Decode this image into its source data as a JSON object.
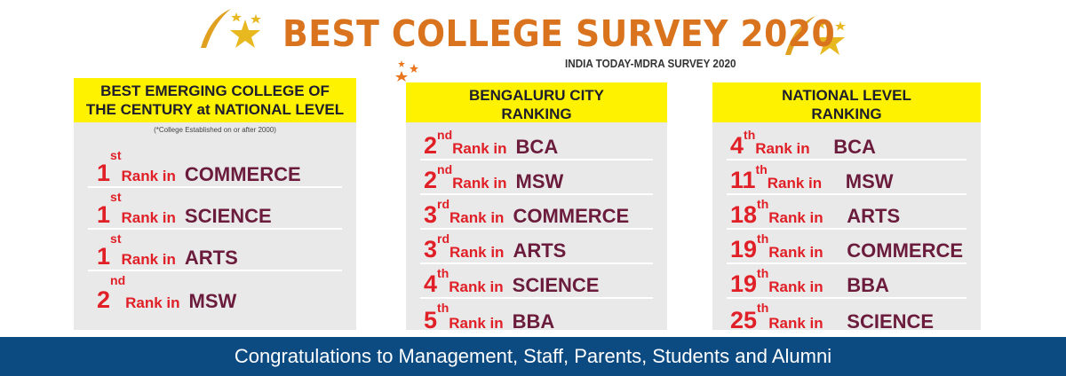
{
  "header": {
    "title": "BEST COLLEGE SURVEY 2020",
    "subtitle": "INDIA TODAY-MDRA SURVEY 2020",
    "icons": [
      "swoosh-star-icon",
      "orange-stars-icon"
    ]
  },
  "colors": {
    "title": "#d9731e",
    "header_bg": "#fff200",
    "rank_red": "#e01f27",
    "subject_maroon": "#6b1c3c",
    "footer_bg": "#0c4a82",
    "panel_bg": "#e9e9e9"
  },
  "panels": [
    {
      "heading": [
        "BEST EMERGING COLLEGE OF",
        "THE CENTURY at NATIONAL LEVEL"
      ],
      "note": "(*College Established on or after 2000)",
      "rows": [
        {
          "num": "1",
          "suffix": "st",
          "rank": "Rank in",
          "subject": "COMMERCE"
        },
        {
          "num": "1",
          "suffix": "st",
          "rank": "Rank in",
          "subject": "SCIENCE"
        },
        {
          "num": "1",
          "suffix": "st",
          "rank": "Rank in",
          "subject": "ARTS"
        },
        {
          "num": "2",
          "suffix": "nd",
          "rank": "Rank in",
          "subject": "MSW"
        }
      ]
    },
    {
      "heading": [
        "BENGALURU CITY",
        "RANKING"
      ],
      "rows": [
        {
          "num": "2",
          "suffix": "nd",
          "rank": "Rank in",
          "subject": "BCA"
        },
        {
          "num": "2",
          "suffix": "nd",
          "rank": "Rank in",
          "subject": "MSW"
        },
        {
          "num": "3",
          "suffix": "rd",
          "rank": "Rank in",
          "subject": "COMMERCE"
        },
        {
          "num": "3",
          "suffix": "rd",
          "rank": "Rank in",
          "subject": "ARTS"
        },
        {
          "num": "4",
          "suffix": "th",
          "rank": "Rank in",
          "subject": "SCIENCE"
        },
        {
          "num": "5",
          "suffix": "th",
          "rank": "Rank in",
          "subject": "BBA"
        }
      ]
    },
    {
      "heading": [
        "NATIONAL LEVEL",
        "RANKING"
      ],
      "rows": [
        {
          "num": "4",
          "suffix": "th",
          "rank": "Rank in",
          "subject": "BCA"
        },
        {
          "num": "11",
          "suffix": "th",
          "rank": "Rank in",
          "subject": "MSW"
        },
        {
          "num": "18",
          "suffix": "th",
          "rank": "Rank in",
          "subject": "ARTS"
        },
        {
          "num": "19",
          "suffix": "th",
          "rank": "Rank in",
          "subject": "COMMERCE"
        },
        {
          "num": "19",
          "suffix": "th",
          "rank": "Rank in",
          "subject": "BBA"
        },
        {
          "num": "25",
          "suffix": "th",
          "rank": "Rank in",
          "subject": "SCIENCE"
        }
      ]
    }
  ],
  "footer": {
    "text": "Congratulations to Management, Staff, Parents, Students and Alumni"
  }
}
